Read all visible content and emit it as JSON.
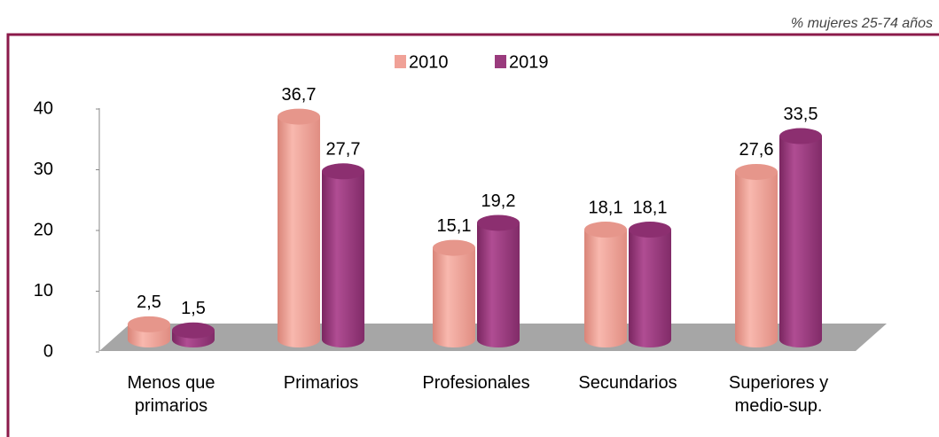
{
  "chart_data": {
    "type": "bar3d",
    "subtitle": "% mujeres 25-74 años",
    "categories": [
      "Menos que\nprimarios",
      "Primarios",
      "Profesionales",
      "Secundarios",
      "Superiores y\nmedio-sup."
    ],
    "series": [
      {
        "name": "2010",
        "color": "#f0a197",
        "values": [
          2.5,
          36.7,
          15.1,
          18.1,
          27.6
        ],
        "value_labels": [
          "2,5",
          "36,7",
          "15,1",
          "18,1",
          "27,6"
        ]
      },
      {
        "name": "2019",
        "color": "#9a3b7d",
        "values": [
          1.5,
          27.7,
          19.2,
          18.1,
          33.5
        ],
        "value_labels": [
          "1,5",
          "27,7",
          "19,2",
          "18,1",
          "33,5"
        ]
      }
    ],
    "ylim": [
      0,
      40
    ],
    "yticks": [
      0,
      10,
      20,
      30,
      40
    ],
    "legend": "top"
  }
}
